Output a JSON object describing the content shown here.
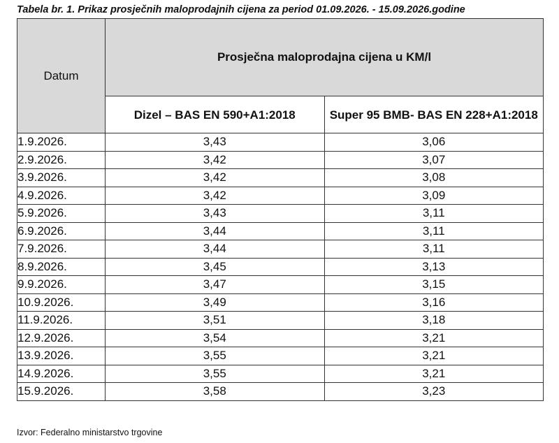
{
  "caption": "Tabela br. 1. Prikaz prosječnih maloprodajnih cijena za period 01.09.2026. - 15.09.2026.godine",
  "table": {
    "header_datum": "Datum",
    "header_main": "Prosječna maloprodajna cijena u KM/l",
    "header_col1": "Dizel – BAS EN 590+A1:2018",
    "header_col2": "Super 95 BMB- BAS EN 228+A1:2018",
    "rows": [
      {
        "date": "1.9.2026.",
        "dizel": "3,43",
        "super": "3,06"
      },
      {
        "date": "2.9.2026.",
        "dizel": "3,42",
        "super": "3,07"
      },
      {
        "date": "3.9.2026.",
        "dizel": "3,42",
        "super": "3,08"
      },
      {
        "date": "4.9.2026.",
        "dizel": "3,42",
        "super": "3,09"
      },
      {
        "date": "5.9.2026.",
        "dizel": "3,43",
        "super": "3,11"
      },
      {
        "date": "6.9.2026.",
        "dizel": "3,44",
        "super": "3,11"
      },
      {
        "date": "7.9.2026.",
        "dizel": "3,44",
        "super": "3,11"
      },
      {
        "date": "8.9.2026.",
        "dizel": "3,45",
        "super": "3,13"
      },
      {
        "date": "9.9.2026.",
        "dizel": "3,47",
        "super": "3,15"
      },
      {
        "date": "10.9.2026.",
        "dizel": "3,49",
        "super": "3,16"
      },
      {
        "date": "11.9.2026.",
        "dizel": "3,51",
        "super": "3,18"
      },
      {
        "date": "12.9.2026.",
        "dizel": "3,54",
        "super": "3,21"
      },
      {
        "date": "13.9.2026.",
        "dizel": "3,55",
        "super": "3,21"
      },
      {
        "date": "14.9.2026.",
        "dizel": "3,55",
        "super": "3,21"
      },
      {
        "date": "15.9.2026.",
        "dizel": "3,58",
        "super": "3,23"
      }
    ]
  },
  "source": "Izvor: Federalno ministarstvo trgovine",
  "colors": {
    "header_bg": "#d9d9d9",
    "border": "#333333"
  }
}
